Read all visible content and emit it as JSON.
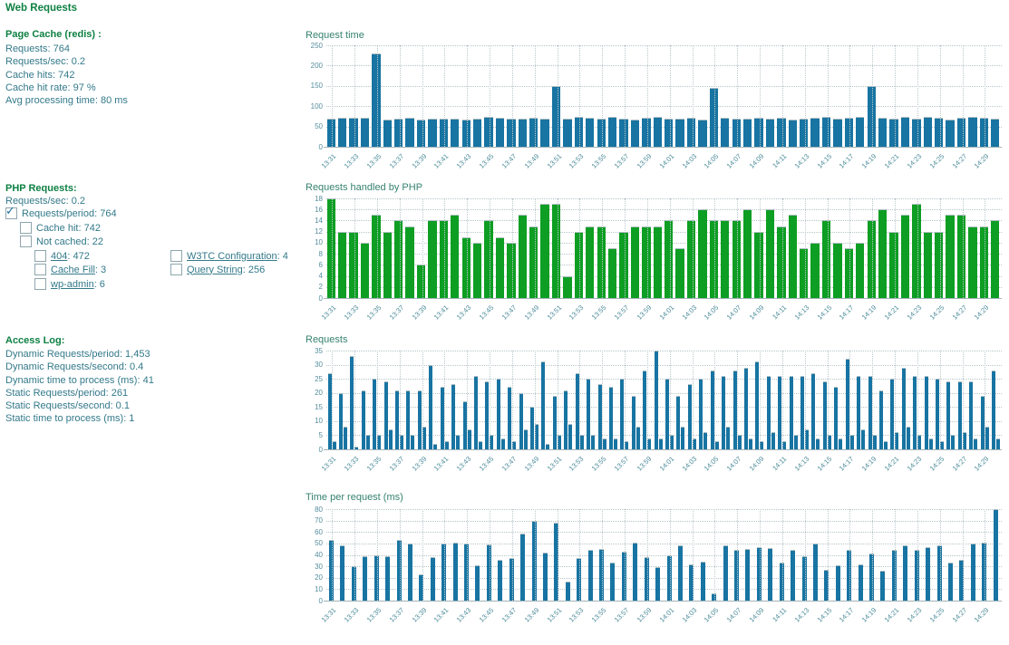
{
  "title": "Web Requests",
  "colors": {
    "heading_green": "#0e8043",
    "body_teal": "#33798a",
    "bar_blue": "#1874a2",
    "bar_green": "#0d9e23",
    "axis_label": "#568e9e",
    "gridline": "#b6c5c9"
  },
  "page_cache": {
    "heading": "Page Cache (redis) :",
    "stats": [
      "Requests: 764",
      "Requests/sec: 0.2",
      "Cache hits: 742",
      "Cache hit rate: 97 %",
      "Avg processing time: 80 ms"
    ]
  },
  "php": {
    "heading": "PHP Requests:",
    "rate_line": "Requests/sec: 0.2",
    "checkboxes": [
      {
        "label": "Requests/period",
        "value": "764",
        "checked": true,
        "link": false,
        "indent": 0,
        "row": 0
      },
      {
        "label": "Cache hit",
        "value": "742",
        "checked": false,
        "link": false,
        "indent": 1,
        "row": 1
      },
      {
        "label": "Not cached",
        "value": "22",
        "checked": false,
        "link": false,
        "indent": 1,
        "row": 2
      },
      {
        "label": "404",
        "value": "472",
        "checked": false,
        "link": true,
        "indent": 2,
        "row": 3
      },
      {
        "label": "Cache Fill",
        "value": "3",
        "checked": false,
        "link": true,
        "indent": 2,
        "row": 4
      },
      {
        "label": "wp-admin",
        "value": "6",
        "checked": false,
        "link": true,
        "indent": 2,
        "row": 5
      }
    ],
    "checkboxes_col2": [
      {
        "label": "W3TC Configuration",
        "value": "4",
        "checked": false,
        "link": true,
        "row": 3
      },
      {
        "label": "Query String",
        "value": "256",
        "checked": false,
        "link": true,
        "row": 4
      }
    ]
  },
  "access_log": {
    "heading": "Access Log:",
    "stats": [
      "Dynamic Requests/period: 1,453",
      "Dynamic Requests/second: 0.4",
      "Dynamic time to process (ms): 41",
      "Static Requests/period: 261",
      "Static Requests/second: 0.1",
      "Static time to process (ms): 1"
    ]
  },
  "time_labels": [
    "13:31",
    "13:33",
    "13:35",
    "13:37",
    "13:39",
    "13:41",
    "13:43",
    "13:45",
    "13:47",
    "13:49",
    "13:51",
    "13:53",
    "13:55",
    "13:57",
    "13:59",
    "14:01",
    "14:03",
    "14:05",
    "14:07",
    "14:09",
    "14:11",
    "14:13",
    "14:15",
    "14:17",
    "14:19",
    "14:21",
    "14:23",
    "14:25",
    "14:27",
    "14:29"
  ],
  "charts": [
    {
      "id": "request_time",
      "title": "Request time",
      "type": "bar",
      "color": "#1874a2",
      "ylim": [
        0,
        250
      ],
      "yticks": [
        0,
        50,
        100,
        150,
        200,
        250
      ],
      "values": [
        70,
        72,
        72,
        72,
        230,
        66,
        70,
        72,
        66,
        70,
        70,
        70,
        68,
        70,
        74,
        72,
        70,
        70,
        72,
        70,
        150,
        70,
        74,
        72,
        70,
        74,
        70,
        68,
        72,
        74,
        70,
        70,
        72,
        68,
        145,
        72,
        70,
        70,
        72,
        70,
        72,
        68,
        70,
        72,
        74,
        70,
        72,
        74,
        150,
        72,
        70,
        74,
        70,
        74,
        72,
        68,
        72,
        74,
        72,
        70
      ]
    },
    {
      "id": "php_handled",
      "title": "Requests handled by PHP",
      "type": "bar",
      "color": "#0d9e23",
      "ylim": [
        0,
        18
      ],
      "yticks": [
        0,
        2,
        4,
        6,
        8,
        10,
        12,
        14,
        16,
        18
      ],
      "values": [
        18,
        12,
        12,
        10,
        15,
        12,
        14,
        13,
        6,
        14,
        14,
        15,
        11,
        10,
        14,
        11,
        10,
        15,
        13,
        17,
        17,
        4,
        12,
        13,
        13,
        9,
        12,
        13,
        13,
        13,
        14,
        9,
        14,
        16,
        14,
        14,
        14,
        16,
        12,
        16,
        13,
        15,
        9,
        10,
        14,
        10,
        9,
        10,
        14,
        16,
        12,
        15,
        17,
        12,
        12,
        15,
        15,
        13,
        13,
        14
      ]
    },
    {
      "id": "requests",
      "title": "Requests",
      "type": "grouped-bar",
      "color": "#1874a2",
      "ylim": [
        0,
        35
      ],
      "yticks": [
        0,
        5,
        10,
        15,
        20,
        25,
        30,
        35
      ],
      "series": [
        {
          "name": "dynamic",
          "values": [
            27,
            20,
            33,
            21,
            25,
            24,
            21,
            21,
            21,
            30,
            22,
            23,
            17,
            26,
            24,
            25,
            22,
            20,
            15,
            31,
            19,
            21,
            27,
            25,
            23,
            22,
            25,
            19,
            28,
            35,
            25,
            19,
            23,
            25,
            28,
            26,
            28,
            29,
            31,
            26,
            26,
            26,
            26,
            27,
            24,
            22,
            32,
            26,
            26,
            21,
            25,
            29,
            26,
            26,
            25,
            24,
            24,
            24,
            19,
            28
          ]
        },
        {
          "name": "static",
          "values": [
            3,
            8,
            1,
            5,
            5,
            7,
            5,
            5,
            8,
            2,
            3,
            5,
            7,
            3,
            5,
            4,
            3,
            7,
            9,
            2,
            5,
            9,
            5,
            5,
            4,
            4,
            3,
            8,
            4,
            4,
            5,
            8,
            4,
            6,
            3,
            8,
            5,
            4,
            3,
            6,
            3,
            5,
            7,
            4,
            5,
            4,
            5,
            7,
            5,
            3,
            6,
            8,
            5,
            4,
            3,
            5,
            6,
            4,
            8,
            4
          ]
        }
      ]
    },
    {
      "id": "time_per_request",
      "title": "Time per request (ms)",
      "type": "bar",
      "bar_style": "narrow",
      "color": "#1874a2",
      "ylim": [
        0,
        80
      ],
      "yticks": [
        0,
        10,
        20,
        30,
        40,
        50,
        60,
        70,
        80
      ],
      "values": [
        53,
        48,
        30,
        39,
        40,
        39,
        53,
        50,
        23,
        38,
        50,
        51,
        50,
        31,
        49,
        36,
        37,
        59,
        70,
        42,
        68,
        17,
        37,
        44,
        45,
        33,
        43,
        51,
        38,
        29,
        40,
        48,
        32,
        34,
        6,
        48,
        44,
        45,
        47,
        46,
        33,
        44,
        39,
        50,
        27,
        31,
        44,
        32,
        41,
        26,
        44,
        48,
        44,
        47,
        48,
        33,
        36,
        50,
        51,
        80
      ]
    }
  ]
}
